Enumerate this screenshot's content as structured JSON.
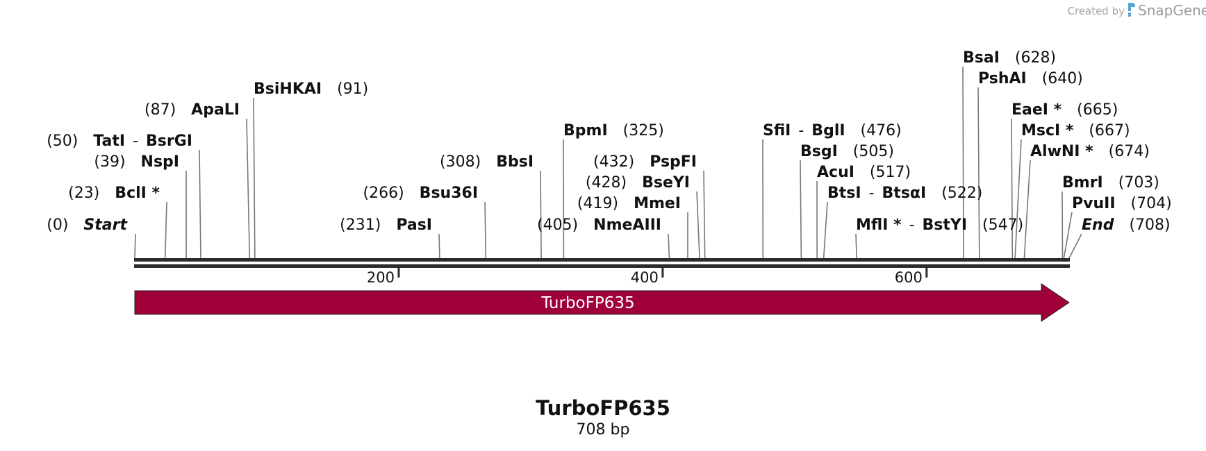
{
  "credit": {
    "prefix": "Created by",
    "brand": "SnapGene"
  },
  "sequence": {
    "name": "TurboFP635",
    "length_label": "708 bp",
    "length": 708
  },
  "ruler_ticks": [
    200,
    400,
    600
  ],
  "feature": {
    "label": "TurboFP635",
    "start": 0,
    "end": 708,
    "color": "#a0003a",
    "direction": "forward"
  },
  "sites": [
    {
      "pos": "(0)",
      "bp": 0,
      "name": "Start",
      "marker": true,
      "italic": true,
      "y": 0
    },
    {
      "pos": "(23)",
      "bp": 23,
      "name": "BclI *",
      "y": 0
    },
    {
      "pos": "(39)",
      "bp": 39,
      "name": "NspI",
      "y": 0
    },
    {
      "pos": "(50)",
      "bp": 50,
      "name": "TatI",
      "name2": "BsrGI",
      "y": 0
    },
    {
      "pos": "(87)",
      "bp": 87,
      "name": "ApaLI",
      "y": 0
    },
    {
      "pos": "(91)",
      "bp": 91,
      "name": "BsiHKAI",
      "y": 0
    },
    {
      "pos": "(231)",
      "bp": 231,
      "name": "PasI",
      "y": 0
    },
    {
      "pos": "(266)",
      "bp": 266,
      "name": "Bsu36I",
      "y": 0
    },
    {
      "pos": "(308)",
      "bp": 308,
      "name": "BbsI",
      "y": 0
    },
    {
      "pos": "(325)",
      "bp": 325,
      "name": "BpmI",
      "y": 0
    },
    {
      "pos": "(405)",
      "bp": 405,
      "name": "NmeAIII",
      "y": 0
    },
    {
      "pos": "(419)",
      "bp": 419,
      "name": "MmeI",
      "y": 0
    },
    {
      "pos": "(428)",
      "bp": 428,
      "name": "BseYI",
      "y": 0
    },
    {
      "pos": "(432)",
      "bp": 432,
      "name": "PspFI",
      "y": 0
    },
    {
      "pos": "(476)",
      "bp": 476,
      "name": "SfiI",
      "name2": "BglI",
      "y": 0
    },
    {
      "pos": "(505)",
      "bp": 505,
      "name": "BsgI",
      "y": 0
    },
    {
      "pos": "(517)",
      "bp": 517,
      "name": "AcuI",
      "y": 0
    },
    {
      "pos": "(522)",
      "bp": 522,
      "name": "BtsI",
      "name2": "BtsαI",
      "y": 0
    },
    {
      "pos": "(547)",
      "bp": 547,
      "name": "MflI *",
      "name2": "BstYI",
      "y": 0
    },
    {
      "pos": "(628)",
      "bp": 628,
      "name": "BsaI",
      "y": 0
    },
    {
      "pos": "(640)",
      "bp": 640,
      "name": "PshAI",
      "y": 0
    },
    {
      "pos": "(665)",
      "bp": 665,
      "name": "EaeI *",
      "y": 0
    },
    {
      "pos": "(667)",
      "bp": 667,
      "name": "MscI *",
      "y": 0
    },
    {
      "pos": "(674)",
      "bp": 674,
      "name": "AlwNI *",
      "y": 0
    },
    {
      "pos": "(703)",
      "bp": 703,
      "name": "BmrI",
      "y": 0
    },
    {
      "pos": "(704)",
      "bp": 704,
      "name": "PvuII",
      "y": 0
    },
    {
      "pos": "(708)",
      "bp": 708,
      "name": "End",
      "marker": true,
      "italic": true,
      "y": 0
    }
  ]
}
